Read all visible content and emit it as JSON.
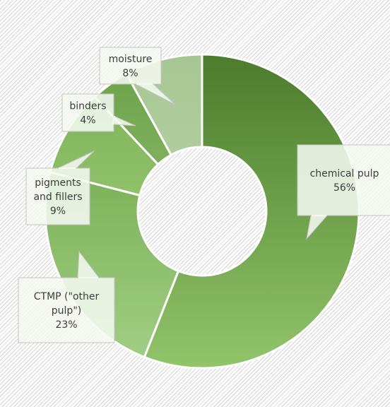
{
  "chart_data": {
    "type": "pie",
    "variant": "donut",
    "title": "",
    "legend": "none",
    "slices": [
      {
        "label": "chemical pulp",
        "value": 56,
        "value_label": "56%",
        "color_top": "#4c7c2c",
        "color_bottom": "#92c46a"
      },
      {
        "label": "CTMP (\"other pulp\")",
        "value": 23,
        "value_label": "23%",
        "color_top": "#64a03c",
        "color_bottom": "#a3cf86"
      },
      {
        "label": "pigments and fillers",
        "value": 9,
        "value_label": "9%",
        "color_top": "#7ab050",
        "color_bottom": "#aad48c"
      },
      {
        "label": "binders",
        "value": 4,
        "value_label": "4%",
        "color_top": "#6aa046",
        "color_bottom": "#a6cc8a"
      },
      {
        "label": "moisture",
        "value": 8,
        "value_label": "8%",
        "color_top": "#a6c692",
        "color_bottom": "#c7dcb9"
      }
    ]
  }
}
